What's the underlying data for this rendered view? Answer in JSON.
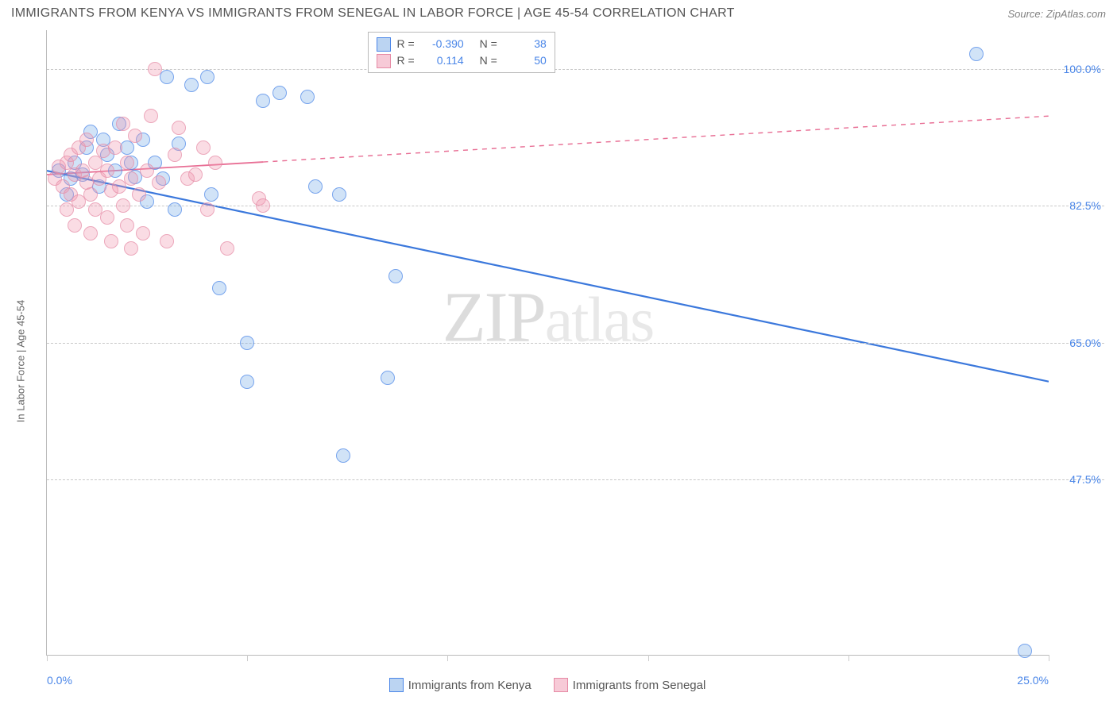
{
  "header": {
    "title": "IMMIGRANTS FROM KENYA VS IMMIGRANTS FROM SENEGAL IN LABOR FORCE | AGE 45-54 CORRELATION CHART",
    "source": "Source: ZipAtlas.com"
  },
  "chart": {
    "type": "scatter",
    "y_axis_label": "In Labor Force | Age 45-54",
    "watermark": "ZIPatlas",
    "background_color": "#ffffff",
    "grid_color": "#c8c8c8",
    "axis_color": "#bbbbbb",
    "xlim": [
      0,
      25
    ],
    "ylim": [
      25,
      105
    ],
    "y_ticks": [
      {
        "value": 47.5,
        "label": "47.5%"
      },
      {
        "value": 65.0,
        "label": "65.0%"
      },
      {
        "value": 82.5,
        "label": "82.5%"
      },
      {
        "value": 100.0,
        "label": "100.0%"
      }
    ],
    "x_ticks": [
      {
        "value": 0,
        "label": "0.0%",
        "align": "left"
      },
      {
        "value": 5,
        "label": ""
      },
      {
        "value": 10,
        "label": ""
      },
      {
        "value": 15,
        "label": ""
      },
      {
        "value": 20,
        "label": ""
      },
      {
        "value": 25,
        "label": "25.0%",
        "align": "right"
      }
    ],
    "series": [
      {
        "id": "kenya",
        "name": "Immigrants from Kenya",
        "color_fill": "rgba(120,170,230,0.45)",
        "color_stroke": "#4a86e8",
        "correlation_r": "-0.390",
        "n": "38",
        "trend": {
          "x1": 0,
          "y1": 87,
          "x2": 25,
          "y2": 60,
          "solid_until_x": 25,
          "stroke": "#3b78dc",
          "width": 2.2
        },
        "points": [
          [
            0.3,
            87
          ],
          [
            0.6,
            86
          ],
          [
            0.7,
            88
          ],
          [
            0.9,
            86.5
          ],
          [
            1.0,
            90
          ],
          [
            1.3,
            85
          ],
          [
            1.5,
            89
          ],
          [
            1.7,
            87
          ],
          [
            2.0,
            90
          ],
          [
            2.2,
            86.2
          ],
          [
            2.4,
            91
          ],
          [
            2.7,
            88
          ],
          [
            3.0,
            99
          ],
          [
            3.3,
            90.5
          ],
          [
            3.6,
            98
          ],
          [
            4.0,
            99
          ],
          [
            4.1,
            84
          ],
          [
            4.3,
            72
          ],
          [
            5.0,
            65
          ],
          [
            5.0,
            60
          ],
          [
            5.4,
            96
          ],
          [
            5.8,
            97
          ],
          [
            6.5,
            96.5
          ],
          [
            6.7,
            85
          ],
          [
            7.3,
            84
          ],
          [
            7.4,
            50.5
          ],
          [
            8.5,
            60.5
          ],
          [
            8.7,
            73.5
          ],
          [
            23.2,
            102
          ],
          [
            24.4,
            25.5
          ],
          [
            1.1,
            92
          ],
          [
            1.8,
            93
          ],
          [
            0.5,
            84
          ],
          [
            2.5,
            83
          ],
          [
            3.2,
            82
          ],
          [
            1.4,
            91
          ],
          [
            2.1,
            88
          ],
          [
            2.9,
            86
          ]
        ]
      },
      {
        "id": "senegal",
        "name": "Immigrants from Senegal",
        "color_fill": "rgba(240,150,175,0.45)",
        "color_stroke": "#e68aa5",
        "correlation_r": "0.114",
        "n": "50",
        "trend": {
          "x1": 0,
          "y1": 86.5,
          "x2": 25,
          "y2": 94,
          "solid_until_x": 5.4,
          "stroke": "#e86f95",
          "width": 1.8
        },
        "points": [
          [
            0.2,
            86
          ],
          [
            0.3,
            87.5
          ],
          [
            0.4,
            85
          ],
          [
            0.5,
            88
          ],
          [
            0.6,
            84
          ],
          [
            0.6,
            89
          ],
          [
            0.7,
            86.5
          ],
          [
            0.8,
            90
          ],
          [
            0.8,
            83
          ],
          [
            0.9,
            87
          ],
          [
            1.0,
            85.5
          ],
          [
            1.0,
            91
          ],
          [
            1.1,
            84
          ],
          [
            1.2,
            88
          ],
          [
            1.2,
            82
          ],
          [
            1.3,
            86
          ],
          [
            1.4,
            89.5
          ],
          [
            1.5,
            81
          ],
          [
            1.5,
            87
          ],
          [
            1.6,
            84.5
          ],
          [
            1.7,
            90
          ],
          [
            1.8,
            85
          ],
          [
            1.9,
            82.5
          ],
          [
            2.0,
            88
          ],
          [
            2.0,
            80
          ],
          [
            2.1,
            86
          ],
          [
            2.2,
            91.5
          ],
          [
            2.3,
            84
          ],
          [
            2.4,
            79
          ],
          [
            2.5,
            87
          ],
          [
            2.6,
            94
          ],
          [
            2.7,
            100
          ],
          [
            2.8,
            85.5
          ],
          [
            3.0,
            78
          ],
          [
            3.2,
            89
          ],
          [
            3.5,
            86
          ],
          [
            3.7,
            86.5
          ],
          [
            4.0,
            82
          ],
          [
            4.2,
            88
          ],
          [
            4.5,
            77
          ],
          [
            3.3,
            92.5
          ],
          [
            1.9,
            93
          ],
          [
            0.5,
            82
          ],
          [
            0.7,
            80
          ],
          [
            1.1,
            79
          ],
          [
            1.6,
            78
          ],
          [
            2.1,
            77
          ],
          [
            5.3,
            83.5
          ],
          [
            5.4,
            82.5
          ],
          [
            3.9,
            90
          ]
        ]
      }
    ],
    "legend_top": {
      "rows": [
        {
          "swatch": "kenya",
          "r_label": "R =",
          "r_value": "-0.390",
          "n_label": "N =",
          "n_value": "38"
        },
        {
          "swatch": "senegal",
          "r_label": "R =",
          "r_value": "0.114",
          "n_label": "N =",
          "n_value": "50"
        }
      ]
    },
    "legend_bottom": [
      {
        "swatch": "kenya",
        "label": "Immigrants from Kenya"
      },
      {
        "swatch": "senegal",
        "label": "Immigrants from Senegal"
      }
    ]
  }
}
